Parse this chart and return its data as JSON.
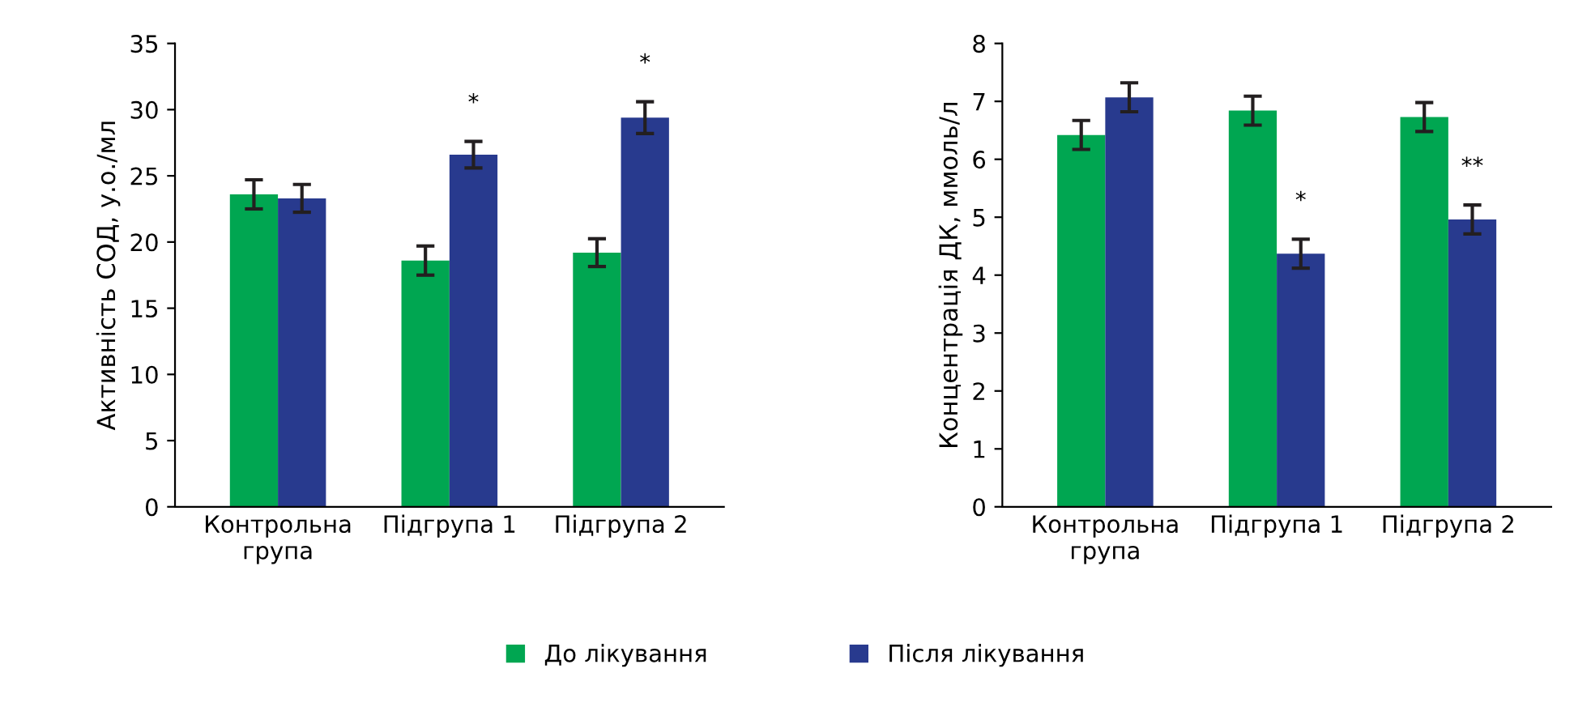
{
  "chart_data": [
    {
      "type": "bar",
      "ylabel": "Активність СОД, у.о./мл",
      "categories": [
        "Контрольна\nгрупа",
        "Підгрупа 1",
        "Підгрупа 2"
      ],
      "series": [
        {
          "name": "До лікування",
          "color": "#00a651",
          "values": [
            23.6,
            18.6,
            19.2
          ],
          "errors": [
            1.1,
            1.1,
            1.05
          ]
        },
        {
          "name": "Після лікування",
          "color": "#283a8e",
          "values": [
            23.3,
            26.6,
            29.4
          ],
          "errors": [
            1.05,
            1.0,
            1.2
          ]
        }
      ],
      "ylim": [
        0,
        35
      ],
      "yticks": [
        0,
        5,
        10,
        15,
        20,
        25,
        30,
        35
      ],
      "grid": false,
      "legend": "bottom",
      "annotations": [
        {
          "text": "*",
          "x": "Підгрупа 1",
          "y": 26.6
        },
        {
          "text": "*",
          "x": "Підгрупа 2",
          "y": 29.4
        }
      ]
    },
    {
      "type": "bar",
      "ylabel": "Концентрація ДК, ммоль/л",
      "categories": [
        "Контрольна\nгрупа",
        "Підгрупа 1",
        "Підгрупа 2"
      ],
      "series": [
        {
          "color": "#00a651",
          "values": [
            6.42,
            6.84,
            6.73
          ],
          "errors": [
            0.25,
            0.25,
            0.25
          ]
        },
        {
          "color": "#283a8e",
          "values": [
            7.07,
            4.37,
            4.96
          ],
          "errors": [
            0.25,
            0.25,
            0.25
          ]
        }
      ],
      "ylim": [
        0,
        8
      ],
      "yticks": [
        0,
        1,
        2,
        3,
        4,
        5,
        6,
        7,
        8
      ],
      "grid": false,
      "annotations": [
        {
          "text": "*",
          "x": "Підгрупа 1",
          "y": 4.37
        },
        {
          "text": "**",
          "x": "Підгрупа 2",
          "y": 4.96
        }
      ]
    }
  ]
}
